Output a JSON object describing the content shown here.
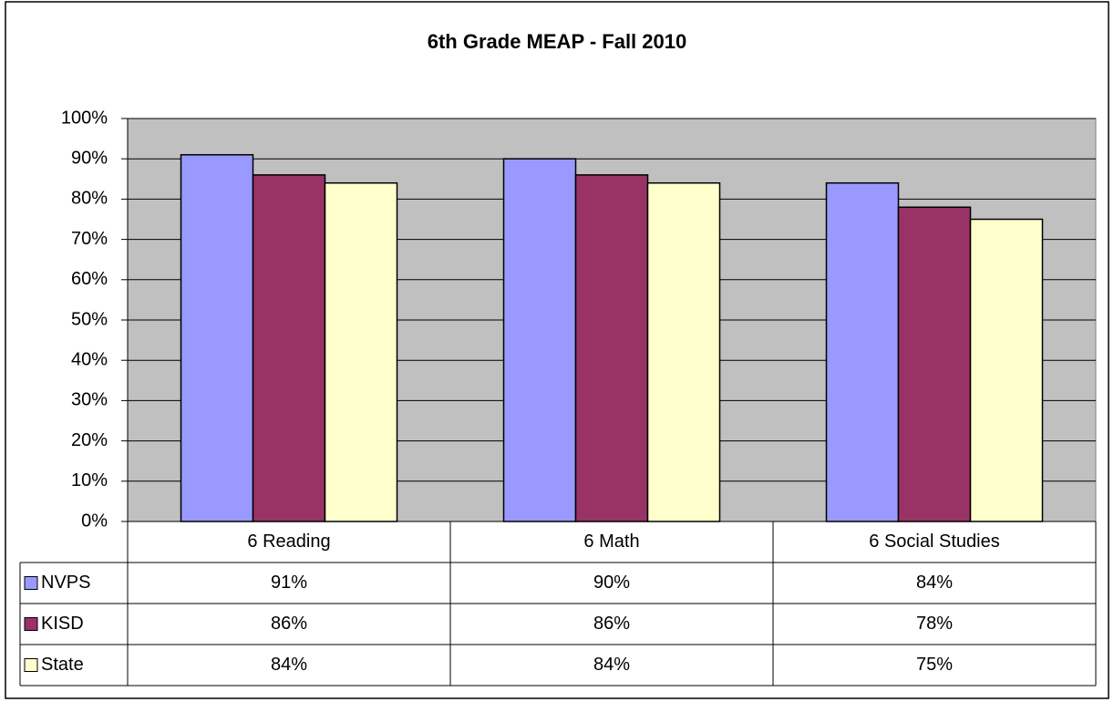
{
  "chart_data": {
    "type": "bar",
    "title": "6th Grade MEAP - Fall 2010",
    "categories": [
      "6 Reading",
      "6 Math",
      "6 Social Studies"
    ],
    "series": [
      {
        "name": "NVPS",
        "color": "#9999ff",
        "values": [
          91,
          90,
          84
        ],
        "value_labels": [
          "91%",
          "90%",
          "84%"
        ]
      },
      {
        "name": "KISD",
        "color": "#993366",
        "values": [
          86,
          86,
          78
        ],
        "value_labels": [
          "86%",
          "86%",
          "78%"
        ]
      },
      {
        "name": "State",
        "color": "#ffffcc",
        "values": [
          84,
          84,
          75
        ],
        "value_labels": [
          "84%",
          "84%",
          "75%"
        ]
      }
    ],
    "ylim": [
      0,
      100
    ],
    "yticks": [
      {
        "value": 0,
        "label": "0%"
      },
      {
        "value": 10,
        "label": "10%"
      },
      {
        "value": 20,
        "label": "20%"
      },
      {
        "value": 30,
        "label": "30%"
      },
      {
        "value": 40,
        "label": "40%"
      },
      {
        "value": 50,
        "label": "50%"
      },
      {
        "value": 60,
        "label": "60%"
      },
      {
        "value": 70,
        "label": "70%"
      },
      {
        "value": 80,
        "label": "80%"
      },
      {
        "value": 90,
        "label": "90%"
      },
      {
        "value": 100,
        "label": "100%"
      }
    ],
    "grid": true,
    "plot_background": "#c0c0c0"
  }
}
